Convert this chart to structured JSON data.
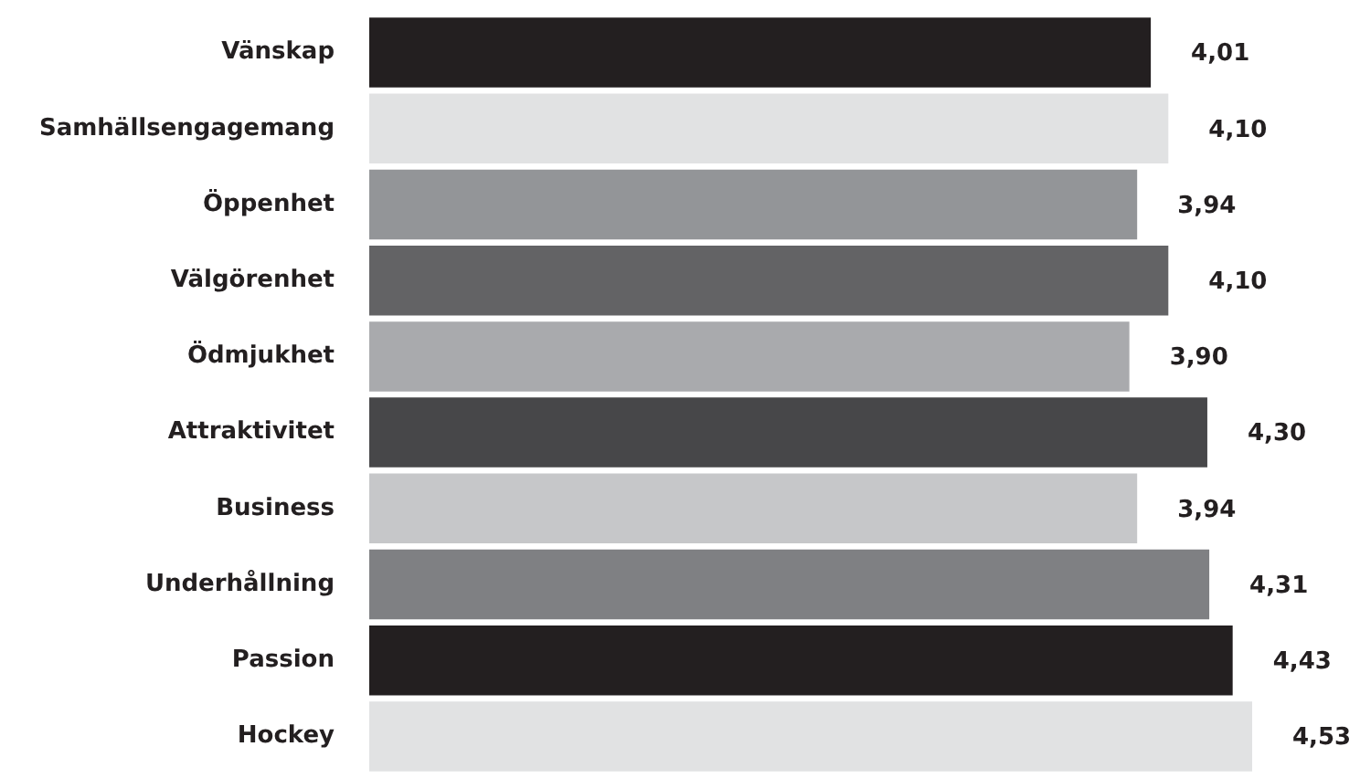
{
  "chart_data": {
    "type": "bar",
    "orientation": "horizontal",
    "categories": [
      "Vänskap",
      "Samhällsengagemang",
      "Öppenhet",
      "Välgörenhet",
      "Ödmjukhet",
      "Attraktivitet",
      "Business",
      "Underhållning",
      "Passion",
      "Hockey"
    ],
    "values": [
      4.01,
      4.1,
      3.94,
      4.1,
      3.9,
      4.3,
      3.94,
      4.31,
      4.43,
      4.53
    ],
    "colors": [
      "#231f20",
      "#e1e2e3",
      "#939598",
      "#636365",
      "#a9aaad",
      "#474749",
      "#c6c7c9",
      "#7f8083",
      "#231f20",
      "#e1e2e3"
    ],
    "value_labels": [
      "4,01",
      "4,10",
      "3,94",
      "4,10",
      "3,90",
      "4,30",
      "3,94",
      "4,31",
      "4,43",
      "4,53"
    ],
    "xlim": [
      0,
      4.53
    ],
    "tick_labels": "y"
  }
}
